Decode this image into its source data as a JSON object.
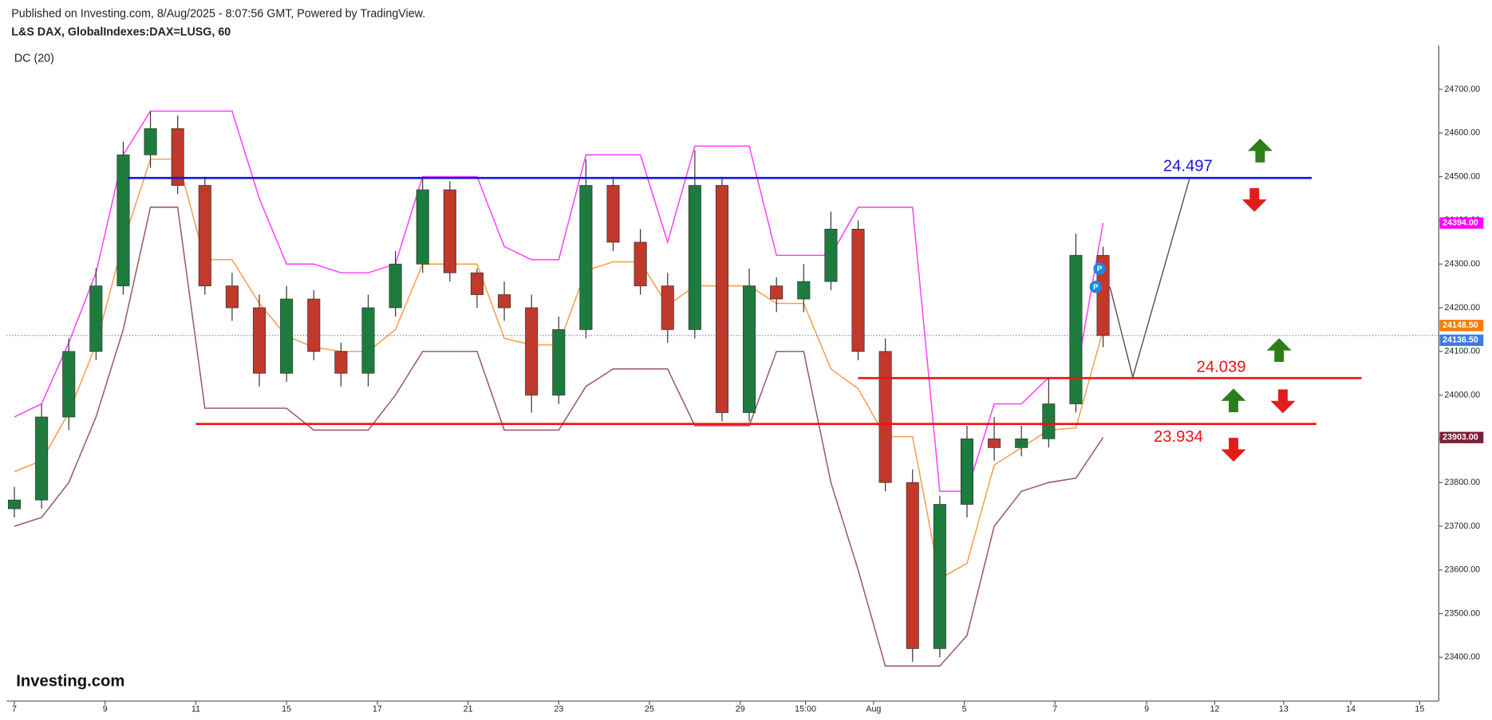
{
  "chart_data": {
    "type": "candlestick",
    "subtitle": "Published on Investing.com, 8/Aug/2025 - 8:07:56 GMT, Powered by TradingView.",
    "title": "L&S DAX, GlobalIndexes:DAX=LUSG, 60",
    "indicator": "DC (20)",
    "source": "Investing.com",
    "markers": [
      "P",
      "P"
    ],
    "x": [
      0,
      3,
      6,
      9,
      12,
      15,
      18,
      21,
      24,
      27,
      30,
      33,
      36,
      39,
      42,
      45,
      48,
      51,
      54,
      57,
      60,
      63,
      66,
      69,
      72,
      75,
      78,
      81,
      84,
      87,
      90,
      93,
      96,
      99,
      102,
      105,
      108,
      111,
      114,
      117,
      120
    ],
    "open": [
      23740,
      23760,
      23950,
      24100,
      24250,
      24550,
      24610,
      24480,
      24250,
      24200,
      24050,
      24220,
      24100,
      24050,
      24200,
      24300,
      24470,
      24280,
      24230,
      24200,
      24000,
      24150,
      24480,
      24350,
      24250,
      24150,
      24480,
      23960,
      24250,
      24220,
      24260,
      24380,
      24100,
      23800,
      23420,
      23750,
      23900,
      23880,
      23900,
      23980,
      24320
    ],
    "high": [
      23790,
      23980,
      24130,
      24290,
      24580,
      24650,
      24640,
      24500,
      24280,
      24230,
      24250,
      24240,
      24120,
      24230,
      24330,
      24500,
      24490,
      24290,
      24260,
      24230,
      24180,
      24540,
      24500,
      24380,
      24280,
      24560,
      24500,
      24290,
      24270,
      24300,
      24420,
      24400,
      24130,
      23830,
      23770,
      23930,
      23950,
      23930,
      24040,
      24370,
      24340
    ],
    "low": [
      23720,
      23740,
      23920,
      24080,
      24230,
      24520,
      24460,
      24230,
      24170,
      24020,
      24030,
      24080,
      24020,
      24020,
      24180,
      24280,
      24260,
      24200,
      24170,
      23960,
      23980,
      24130,
      24330,
      24230,
      24120,
      24130,
      23940,
      23940,
      24190,
      24190,
      24240,
      24080,
      23780,
      23390,
      23400,
      23720,
      23850,
      23860,
      23880,
      23960,
      24110
    ],
    "close": [
      23760,
      23950,
      24100,
      24250,
      24550,
      24610,
      24480,
      24250,
      24200,
      24050,
      24220,
      24100,
      24050,
      24200,
      24300,
      24470,
      24280,
      24230,
      24200,
      24000,
      24150,
      24480,
      24350,
      24250,
      24150,
      24480,
      23960,
      24250,
      24220,
      24260,
      24380,
      24100,
      23800,
      23420,
      23750,
      23900,
      23880,
      23900,
      23980,
      24320,
      24136.5
    ],
    "up_color": "#1e7b3e",
    "down_color": "#c0392b",
    "series": [
      {
        "color": "#ff44ff",
        "values": [
          23950,
          23980,
          24120,
          24280,
          24550,
          24650,
          24650,
          24650,
          24650,
          24450,
          24300,
          24300,
          24280,
          24280,
          24300,
          24500,
          24500,
          24500,
          24340,
          24310,
          24310,
          24550,
          24550,
          24550,
          24350,
          24570,
          24570,
          24570,
          24320,
          24320,
          24320,
          24430,
          24430,
          24430,
          23780,
          23780,
          23980,
          23980,
          24040,
          24040,
          24394
        ]
      },
      {
        "color": "#f5a04f",
        "values": [
          23825,
          23850,
          23960,
          24115,
          24350,
          24540,
          24540,
          24310,
          24310,
          24210,
          24135,
          24110,
          24100,
          24100,
          24150,
          24300,
          24300,
          24300,
          24130,
          24115,
          24115,
          24285,
          24305,
          24305,
          24205,
          24250,
          24250,
          24250,
          24210,
          24210,
          24060,
          24015,
          23905,
          23905,
          23580,
          23615,
          23840,
          23880,
          23920,
          23925,
          24148.5
        ]
      },
      {
        "color": "#9c5b6b",
        "values": [
          23700,
          23720,
          23800,
          23950,
          24150,
          24430,
          24430,
          23970,
          23970,
          23970,
          23970,
          23920,
          23920,
          23920,
          24000,
          24100,
          24100,
          24100,
          23920,
          23920,
          23920,
          24020,
          24060,
          24060,
          24060,
          23930,
          23930,
          23930,
          24100,
          24100,
          23800,
          23600,
          23380,
          23380,
          23380,
          23450,
          23700,
          23780,
          23800,
          23810,
          23903
        ]
      }
    ],
    "levels": [
      {
        "value": 24497,
        "label": "24.497",
        "color": "#1515e0",
        "x": [
          12.5,
          143
        ]
      },
      {
        "value": 24039,
        "label": "24.039",
        "color": "#ee1111",
        "x": [
          93,
          148.5
        ]
      },
      {
        "value": 23934,
        "label": "23.934",
        "color": "#ee1111",
        "x": [
          20,
          143.5
        ]
      }
    ],
    "price_tags": [
      {
        "value": 24394,
        "label": "24394.00",
        "color": "#ff00ff"
      },
      {
        "value": 24148.5,
        "label": "24148.50",
        "color": "#f57c00"
      },
      {
        "value": 24136.5,
        "label": "24136.50",
        "color": "#3d7be0"
      },
      {
        "value": 23903,
        "label": "23903.00",
        "color": "#7b1f3a"
      }
    ],
    "xlim": [
      -0.85,
      157
    ],
    "xticks": [
      {
        "value": 0,
        "label": "7"
      },
      {
        "value": 10,
        "label": "9"
      },
      {
        "value": 20,
        "label": "11"
      },
      {
        "value": 30,
        "label": "15"
      },
      {
        "value": 40,
        "label": "17"
      },
      {
        "value": 50,
        "label": "21"
      },
      {
        "value": 60,
        "label": "23"
      },
      {
        "value": 70,
        "label": "25"
      },
      {
        "value": 80,
        "label": "29"
      },
      {
        "value": 87.2,
        "label": "15:00"
      },
      {
        "value": 94.7,
        "label": "Aug"
      },
      {
        "value": 104.7,
        "label": "5"
      },
      {
        "value": 114.7,
        "label": "7"
      },
      {
        "value": 124.8,
        "label": "9"
      },
      {
        "value": 132.3,
        "label": "12"
      },
      {
        "value": 139.9,
        "label": "13"
      },
      {
        "value": 147.3,
        "label": "14"
      },
      {
        "value": 154.9,
        "label": "15"
      }
    ],
    "ylim": [
      23300,
      24800
    ],
    "yticks": [
      {
        "value": 23400,
        "label": "23400.00"
      },
      {
        "value": 23500,
        "label": "23500.00"
      },
      {
        "value": 23600,
        "label": "23600.00"
      },
      {
        "value": 23700,
        "label": "23700.00"
      },
      {
        "value": 23800,
        "label": "23800.00"
      },
      {
        "value": 23900,
        "label": "23900.00"
      },
      {
        "value": 24000,
        "label": "24000.00"
      },
      {
        "value": 24100,
        "label": "24100.00"
      },
      {
        "value": 24200,
        "label": "24200.00"
      },
      {
        "value": 24300,
        "label": "24300.00"
      },
      {
        "value": 24400,
        "label": "24400.00"
      },
      {
        "value": 24500,
        "label": "24500.00"
      },
      {
        "value": 24600,
        "label": "24600.00"
      },
      {
        "value": 24700,
        "label": "24700.00"
      }
    ]
  }
}
